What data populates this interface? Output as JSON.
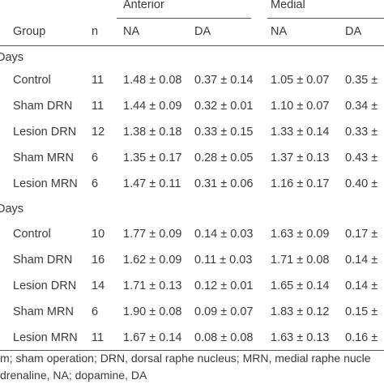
{
  "header": {
    "anterior": "Anterior",
    "medial": "Medial",
    "group": "Group",
    "n": "n",
    "anterior_na": "NA",
    "anterior_da": "DA",
    "medial_na": "NA",
    "medial_da": "DA"
  },
  "sections": [
    {
      "label": "Days",
      "rows": [
        {
          "group": "Control",
          "n": "11",
          "ant_na": "1.48 ± 0.08",
          "ant_da": "0.37 ± 0.14",
          "med_na": "1.05 ± 0.07",
          "med_da": "0.35 ±"
        },
        {
          "group": "Sham DRN",
          "n": "11",
          "ant_na": "1.44 ± 0.09",
          "ant_da": "0.32 ± 0.01",
          "med_na": "1.10 ± 0.07",
          "med_da": "0.34 ±"
        },
        {
          "group": "Lesion DRN",
          "n": "12",
          "ant_na": "1.38 ± 0.18",
          "ant_da": "0.33 ± 0.15",
          "med_na": "1.33 ± 0.14",
          "med_da": "0.33 ±"
        },
        {
          "group": "Sham MRN",
          "n": "6",
          "ant_na": "1.35 ± 0.17",
          "ant_da": "0.28 ± 0.05",
          "med_na": "1.37 ± 0.13",
          "med_da": "0.43 ±"
        },
        {
          "group": "Lesion MRN",
          "n": "6",
          "ant_na": "1.47 ± 0.11",
          "ant_da": "0.31 ± 0.06",
          "med_na": "1.16 ± 0.17",
          "med_da": "0.40 ±"
        }
      ]
    },
    {
      "label": "Days",
      "rows": [
        {
          "group": "Control",
          "n": "10",
          "ant_na": "1.77 ± 0.09",
          "ant_da": "0.14 ± 0.03",
          "med_na": "1.63 ± 0.09",
          "med_da": "0.17 ±"
        },
        {
          "group": "Sham DRN",
          "n": "16",
          "ant_na": "1.62 ± 0.09",
          "ant_da": "0.11 ± 0.03",
          "med_na": "1.71 ± 0.08",
          "med_da": "0.14 ±"
        },
        {
          "group": "Lesion DRN",
          "n": "14",
          "ant_na": "1.71 ± 0.13",
          "ant_da": "0.12 ± 0.01",
          "med_na": "1.65 ± 0.14",
          "med_da": "0.14 ±"
        },
        {
          "group": "Sham MRN",
          "n": "6",
          "ant_na": "1.90 ± 0.08",
          "ant_da": "0.09 ± 0.07",
          "med_na": "1.83 ± 0.12",
          "med_da": "0.15 ±"
        },
        {
          "group": "Lesion MRN",
          "n": "11",
          "ant_na": "1.67 ± 0.14",
          "ant_da": "0.08 ± 0.08",
          "med_na": "1.63 ± 0.13",
          "med_da": "0.16 ±"
        }
      ]
    }
  ],
  "footnotes": [
    "m; sham operation; DRN, dorsal raphe nucleus; MRN, medial raphe nucle",
    "drenaline, NA; dopamine, DA"
  ]
}
